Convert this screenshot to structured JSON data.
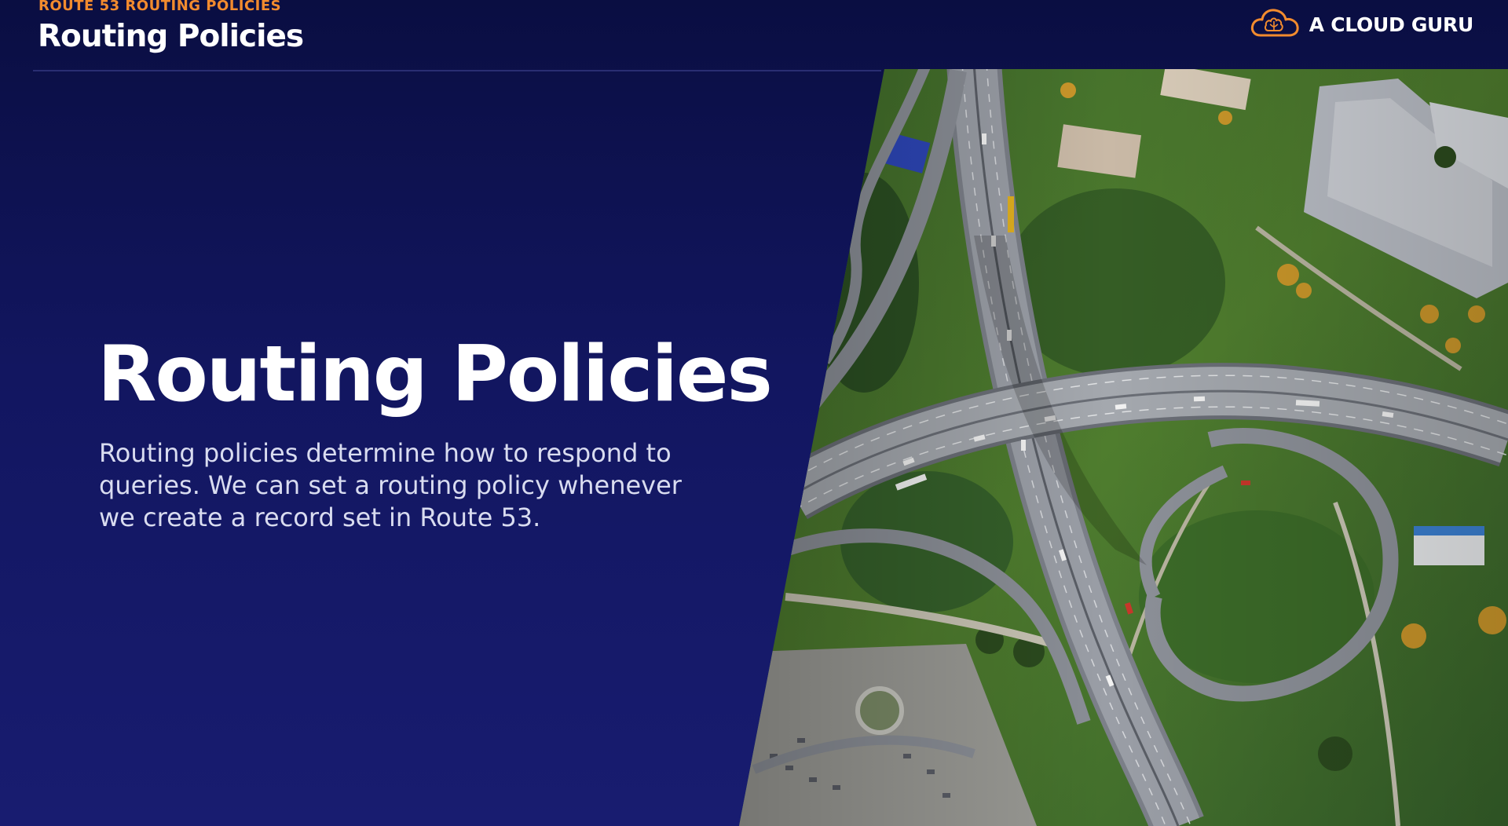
{
  "header": {
    "eyebrow": "ROUTE 53 ROUTING POLICIES",
    "title": "Routing Policies"
  },
  "logo": {
    "text": "A CLOUD GURU",
    "icon": "cloud-brain-icon",
    "icon_color": "#f28b2e"
  },
  "main": {
    "title": "Routing Policies",
    "description": "Routing policies determine how to respond to queries. We can set a routing policy whenever we create a record set in Route 53."
  },
  "photo": {
    "subject": "aerial-highway-interchange"
  },
  "colors": {
    "background": "#141866",
    "accent": "#f28b2e",
    "title": "#ffffff",
    "body_text": "#d9dcf0"
  }
}
